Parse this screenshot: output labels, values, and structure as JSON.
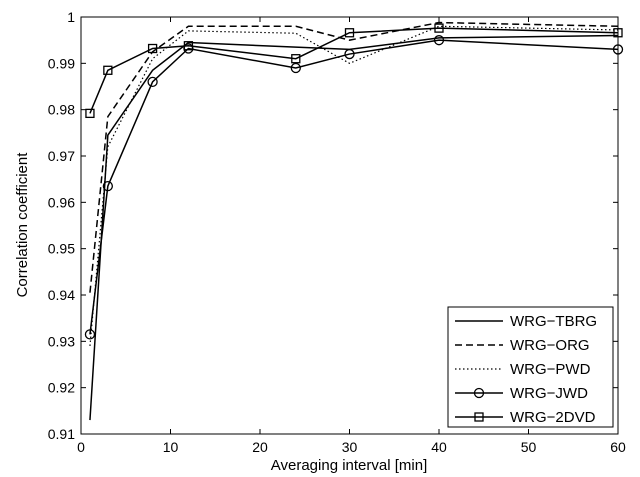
{
  "chart_data": {
    "type": "line",
    "title": "",
    "xlabel": "Averaging interval [min]",
    "ylabel": "Correlation coefficient",
    "xlim": [
      0,
      60
    ],
    "ylim": [
      0.91,
      1.0
    ],
    "xticks": [
      "0",
      "10",
      "20",
      "30",
      "40",
      "50",
      "60"
    ],
    "yticks": [
      "0.91",
      "0.92",
      "0.93",
      "0.94",
      "0.95",
      "0.96",
      "0.97",
      "0.98",
      "0.99",
      "1"
    ],
    "grid": false,
    "legend_position": "bottom-right",
    "x": [
      1,
      3,
      8,
      12,
      24,
      30,
      40,
      60
    ],
    "series": [
      {
        "name": "WRG−TBRG",
        "style": "solid",
        "marker": "none",
        "color": "#000000",
        "values": [
          0.913,
          0.9745,
          0.9885,
          0.9945,
          0.9935,
          0.993,
          0.9955,
          0.996
        ]
      },
      {
        "name": "WRG−ORG",
        "style": "dashed",
        "marker": "none",
        "color": "#000000",
        "values": [
          0.9405,
          0.9785,
          0.9925,
          0.998,
          0.998,
          0.995,
          0.9988,
          0.998
        ]
      },
      {
        "name": "WRG−PWD",
        "style": "dotted",
        "marker": "none",
        "color": "#000000",
        "values": [
          0.929,
          0.972,
          0.991,
          0.997,
          0.9965,
          0.99,
          0.998,
          0.9972
        ]
      },
      {
        "name": "WRG−JWD",
        "style": "solid",
        "marker": "circle",
        "color": "#000000",
        "values": [
          0.9315,
          0.9635,
          0.986,
          0.9932,
          0.989,
          0.992,
          0.995,
          0.993
        ]
      },
      {
        "name": "WRG−2DVD",
        "style": "solid",
        "marker": "square",
        "color": "#000000",
        "values": [
          0.9792,
          0.9885,
          0.9932,
          0.9938,
          0.991,
          0.9966,
          0.9976,
          0.9966
        ]
      }
    ]
  }
}
